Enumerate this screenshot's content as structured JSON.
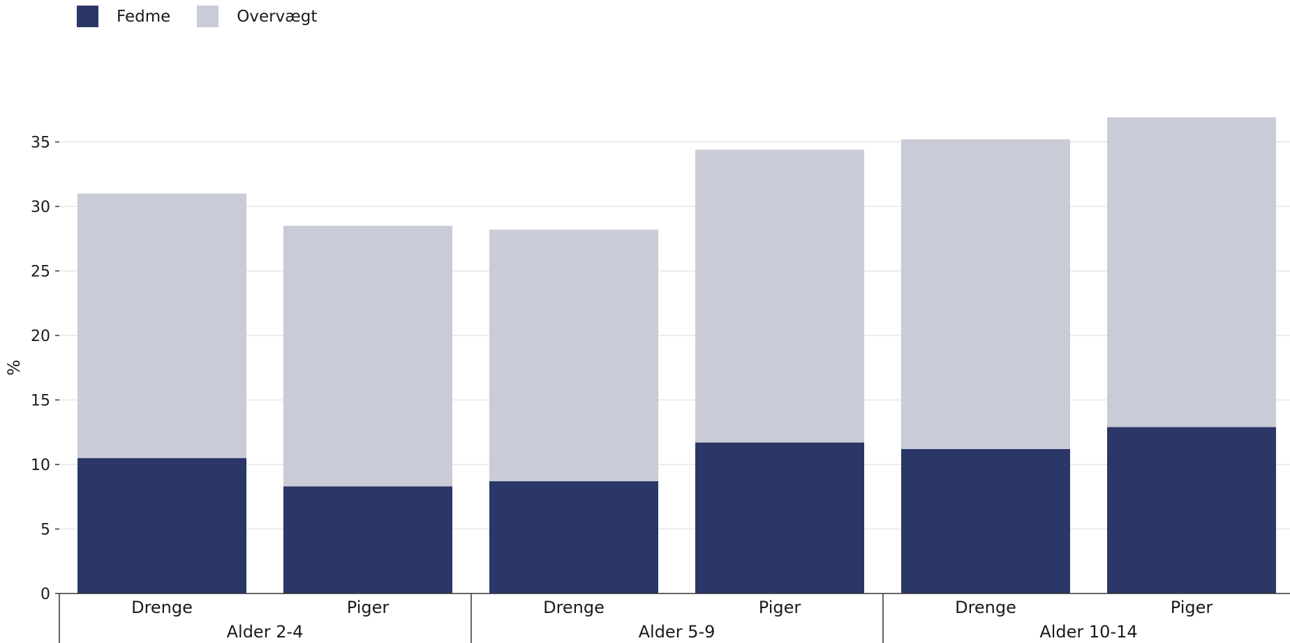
{
  "legend": [
    {
      "label": "Fedme",
      "color": "#2b3766"
    },
    {
      "label": "Overvægt",
      "color": "#c9cbd7"
    }
  ],
  "chart_data": {
    "type": "bar",
    "stacked": true,
    "xlabel": "",
    "ylabel": "%",
    "ylim": [
      0,
      35
    ],
    "yticks": [
      0,
      5,
      10,
      15,
      20,
      25,
      30,
      35
    ],
    "grid": true,
    "legend_position": "top-left",
    "groups": [
      {
        "label": "Alder 2-4",
        "categories": [
          "Drenge",
          "Piger"
        ]
      },
      {
        "label": "Alder 5-9",
        "categories": [
          "Drenge",
          "Piger"
        ]
      },
      {
        "label": "Alder 10-14",
        "categories": [
          "Drenge",
          "Piger"
        ]
      }
    ],
    "categories": [
      "Drenge",
      "Piger",
      "Drenge",
      "Piger",
      "Drenge",
      "Piger"
    ],
    "series": [
      {
        "name": "Fedme",
        "color": "#2b3766",
        "values": [
          10.5,
          8.3,
          8.7,
          11.7,
          11.2,
          12.9
        ]
      },
      {
        "name": "Overvægt",
        "color": "#c9cbd7",
        "values": [
          20.5,
          20.2,
          19.5,
          22.7,
          24.0,
          24.0
        ]
      }
    ]
  }
}
